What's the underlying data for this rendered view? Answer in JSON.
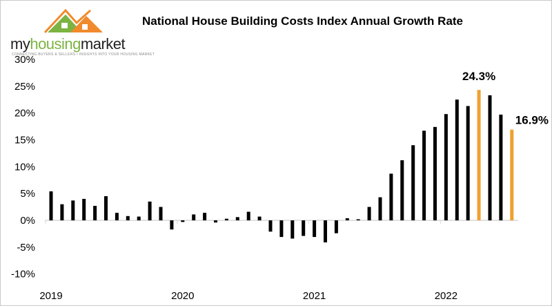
{
  "logo": {
    "brand_prefix": "my",
    "brand_highlight": "housing",
    "brand_suffix": "market",
    "tagline": "CONNECTING BUYERS & SELLERS • INSIGHTS INTO YOUR HOUSING MARKET"
  },
  "colors": {
    "bar": "#000000",
    "highlight": "#f0a030",
    "axis": "#d9d9d9",
    "logo_green": "#7cb342",
    "logo_orange": "#f08a2c"
  },
  "chart_data": {
    "type": "bar",
    "title": "National House Building Costs Index Annual Growth Rate",
    "xlabel": "",
    "ylabel": "",
    "ylim": [
      -10,
      30
    ],
    "yticks": [
      "-10%",
      "-5%",
      "0%",
      "5%",
      "10%",
      "15%",
      "20%",
      "25%",
      "30%"
    ],
    "ytick_values": [
      -10,
      -5,
      0,
      5,
      10,
      15,
      20,
      25,
      30
    ],
    "xtick_labels": [
      "2019",
      "2020",
      "2021",
      "2022"
    ],
    "grid": false,
    "categories": [
      "2019-01",
      "2019-02",
      "2019-03",
      "2019-04",
      "2019-05",
      "2019-06",
      "2019-07",
      "2019-08",
      "2019-09",
      "2019-10",
      "2019-11",
      "2019-12",
      "2020-01",
      "2020-02",
      "2020-03",
      "2020-04",
      "2020-05",
      "2020-06",
      "2020-07",
      "2020-08",
      "2020-09",
      "2020-10",
      "2020-11",
      "2020-12",
      "2021-01",
      "2021-02",
      "2021-03",
      "2021-04",
      "2021-05",
      "2021-06",
      "2021-07",
      "2021-08",
      "2021-09",
      "2021-10",
      "2021-11",
      "2021-12",
      "2022-01",
      "2022-02",
      "2022-03",
      "2022-04",
      "2022-05",
      "2022-06",
      "2022-07"
    ],
    "values": [
      5.4,
      3.0,
      3.7,
      4.0,
      2.7,
      4.5,
      1.4,
      0.8,
      0.7,
      3.5,
      2.5,
      -1.7,
      -0.3,
      1.1,
      1.4,
      -0.4,
      0.3,
      0.6,
      1.6,
      0.7,
      -2.1,
      -3.1,
      -3.4,
      -2.9,
      -3.1,
      -4.1,
      -2.4,
      0.4,
      0.2,
      2.5,
      4.3,
      8.7,
      11.2,
      14.0,
      16.7,
      17.4,
      19.8,
      22.5,
      21.3,
      24.3,
      23.3,
      19.7,
      16.9
    ],
    "highlighted": [
      "2022-04",
      "2022-07"
    ],
    "data_labels": [
      {
        "category": "2022-04",
        "text": "24.3%"
      },
      {
        "category": "2022-07",
        "text": "16.9%"
      }
    ]
  }
}
